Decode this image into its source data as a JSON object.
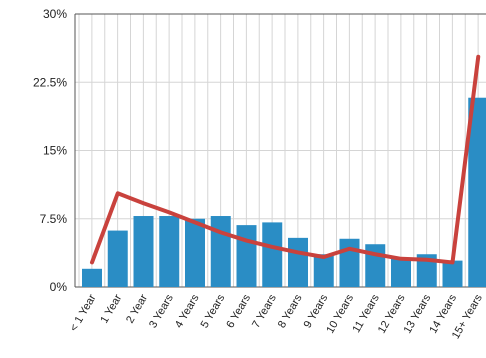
{
  "chart_data": {
    "type": "bar_line",
    "categories": [
      "< 1 Year",
      "1 Year",
      "2 Year",
      "3 Years",
      "4 Years",
      "5 Years",
      "6 Years",
      "7 Years",
      "8 Years",
      "9 Years",
      "10 Years",
      "11 Years",
      "12 Years",
      "13 Years",
      "14 Years",
      "15+ Years"
    ],
    "series": [
      {
        "type": "bar",
        "color": "#2a8dc5",
        "values": [
          2.0,
          6.2,
          7.8,
          7.8,
          7.5,
          7.8,
          6.8,
          7.1,
          5.4,
          3.6,
          5.3,
          4.7,
          3.1,
          3.6,
          2.9,
          20.8
        ]
      },
      {
        "type": "line",
        "color": "#c9423d",
        "values": [
          2.7,
          10.3,
          9.2,
          8.2,
          7.1,
          6.0,
          5.1,
          4.4,
          3.8,
          3.3,
          4.2,
          3.6,
          3.1,
          3.0,
          2.7,
          25.3
        ]
      }
    ],
    "ylim": [
      0,
      30
    ],
    "yticks": [
      {
        "value": 0,
        "label": "0%"
      },
      {
        "value": 7.5,
        "label": "7.5%"
      },
      {
        "value": 15,
        "label": "15%"
      },
      {
        "value": 22.5,
        "label": "22.5%"
      },
      {
        "value": 30,
        "label": "30%"
      }
    ],
    "grid": true
  }
}
